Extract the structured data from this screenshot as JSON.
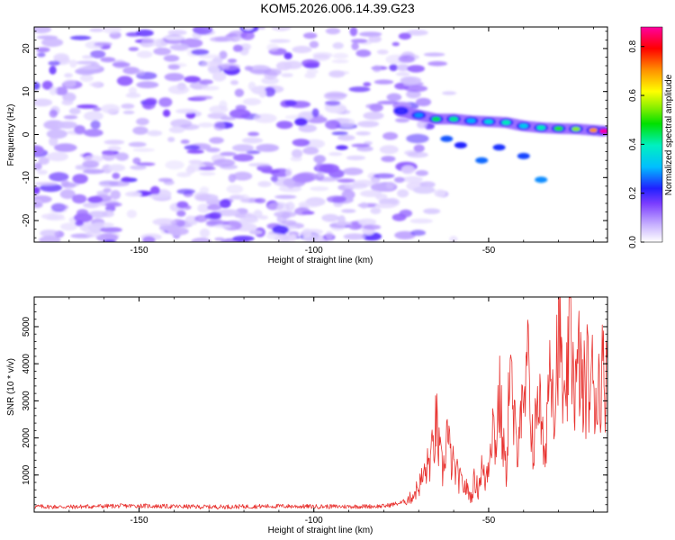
{
  "figure": {
    "title": "KOM5.2026.006.14.39.G23"
  },
  "colors": {
    "snr_line": "#e8322f",
    "axis": "#000000"
  },
  "chart_data": [
    {
      "type": "heatmap",
      "xlabel": "Height of straight line (km)",
      "ylabel": "Frequency (Hz)",
      "xlim": [
        -180,
        -16
      ],
      "ylim": [
        -25,
        25
      ],
      "x_ticks": [
        -150,
        -100,
        -50
      ],
      "y_ticks": [
        -20,
        -10,
        0,
        10,
        20
      ],
      "colorbar": {
        "label": "Normalized spectral amplitude",
        "range": [
          0,
          0.88
        ],
        "ticks": [
          0.0,
          0.2,
          0.4,
          0.6,
          0.8
        ]
      },
      "signal_track": [
        {
          "x": -75,
          "y": 5.5,
          "value": 0.2
        },
        {
          "x": -70,
          "y": 4.5,
          "value": 0.28
        },
        {
          "x": -65,
          "y": 3.6,
          "value": 0.45
        },
        {
          "x": -60,
          "y": 3.6,
          "value": 0.42
        },
        {
          "x": -55,
          "y": 3.2,
          "value": 0.3
        },
        {
          "x": -50,
          "y": 3.0,
          "value": 0.35
        },
        {
          "x": -45,
          "y": 2.8,
          "value": 0.4
        },
        {
          "x": -40,
          "y": 2.0,
          "value": 0.33
        },
        {
          "x": -35,
          "y": 1.6,
          "value": 0.4
        },
        {
          "x": -30,
          "y": 1.4,
          "value": 0.5
        },
        {
          "x": -25,
          "y": 1.3,
          "value": 0.55
        },
        {
          "x": -20,
          "y": 1.0,
          "value": 0.7
        },
        {
          "x": -17,
          "y": 0.8,
          "value": 0.88
        }
      ]
    },
    {
      "type": "line",
      "xlabel": "Height of straight line (km)",
      "ylabel": "SNR (10 * v/v)",
      "xlim": [
        -180,
        -16
      ],
      "ylim": [
        0,
        5800
      ],
      "x_ticks": [
        -150,
        -100,
        -50
      ],
      "y_ticks": [
        1000,
        2000,
        3000,
        4000,
        5000
      ],
      "series": [
        {
          "x": [
            -180,
            -170,
            -160,
            -150,
            -140,
            -130,
            -120,
            -110,
            -100,
            -90,
            -80,
            -75,
            -72,
            -70,
            -68,
            -66,
            -65,
            -64,
            -63,
            -62,
            -61,
            -60,
            -58,
            -56,
            -55,
            -54,
            -53,
            -52,
            -51,
            -50,
            -49,
            -48,
            -47,
            -46,
            -45,
            -44,
            -43,
            -42,
            -41,
            -40,
            -39,
            -38,
            -37,
            -36,
            -35,
            -34,
            -33,
            -32,
            -31,
            -30,
            -29,
            -28,
            -27,
            -26,
            -25,
            -24,
            -23,
            -22,
            -21,
            -20,
            -19,
            -18,
            -17,
            -16
          ],
          "values": [
            150,
            140,
            160,
            170,
            150,
            140,
            150,
            160,
            150,
            150,
            160,
            250,
            400,
            700,
            1100,
            1600,
            2400,
            1500,
            1000,
            2200,
            1500,
            1200,
            800,
            600,
            400,
            900,
            600,
            1200,
            800,
            1400,
            2500,
            1800,
            3200,
            2000,
            1000,
            3900,
            2600,
            1700,
            3000,
            2200,
            4000,
            2800,
            1500,
            3600,
            2400,
            1200,
            3400,
            4600,
            2700,
            5700,
            3600,
            2200,
            5100,
            4300,
            3200,
            4100,
            3000,
            3700,
            3300,
            3600,
            3000,
            3900,
            3500,
            4400
          ]
        }
      ]
    }
  ]
}
